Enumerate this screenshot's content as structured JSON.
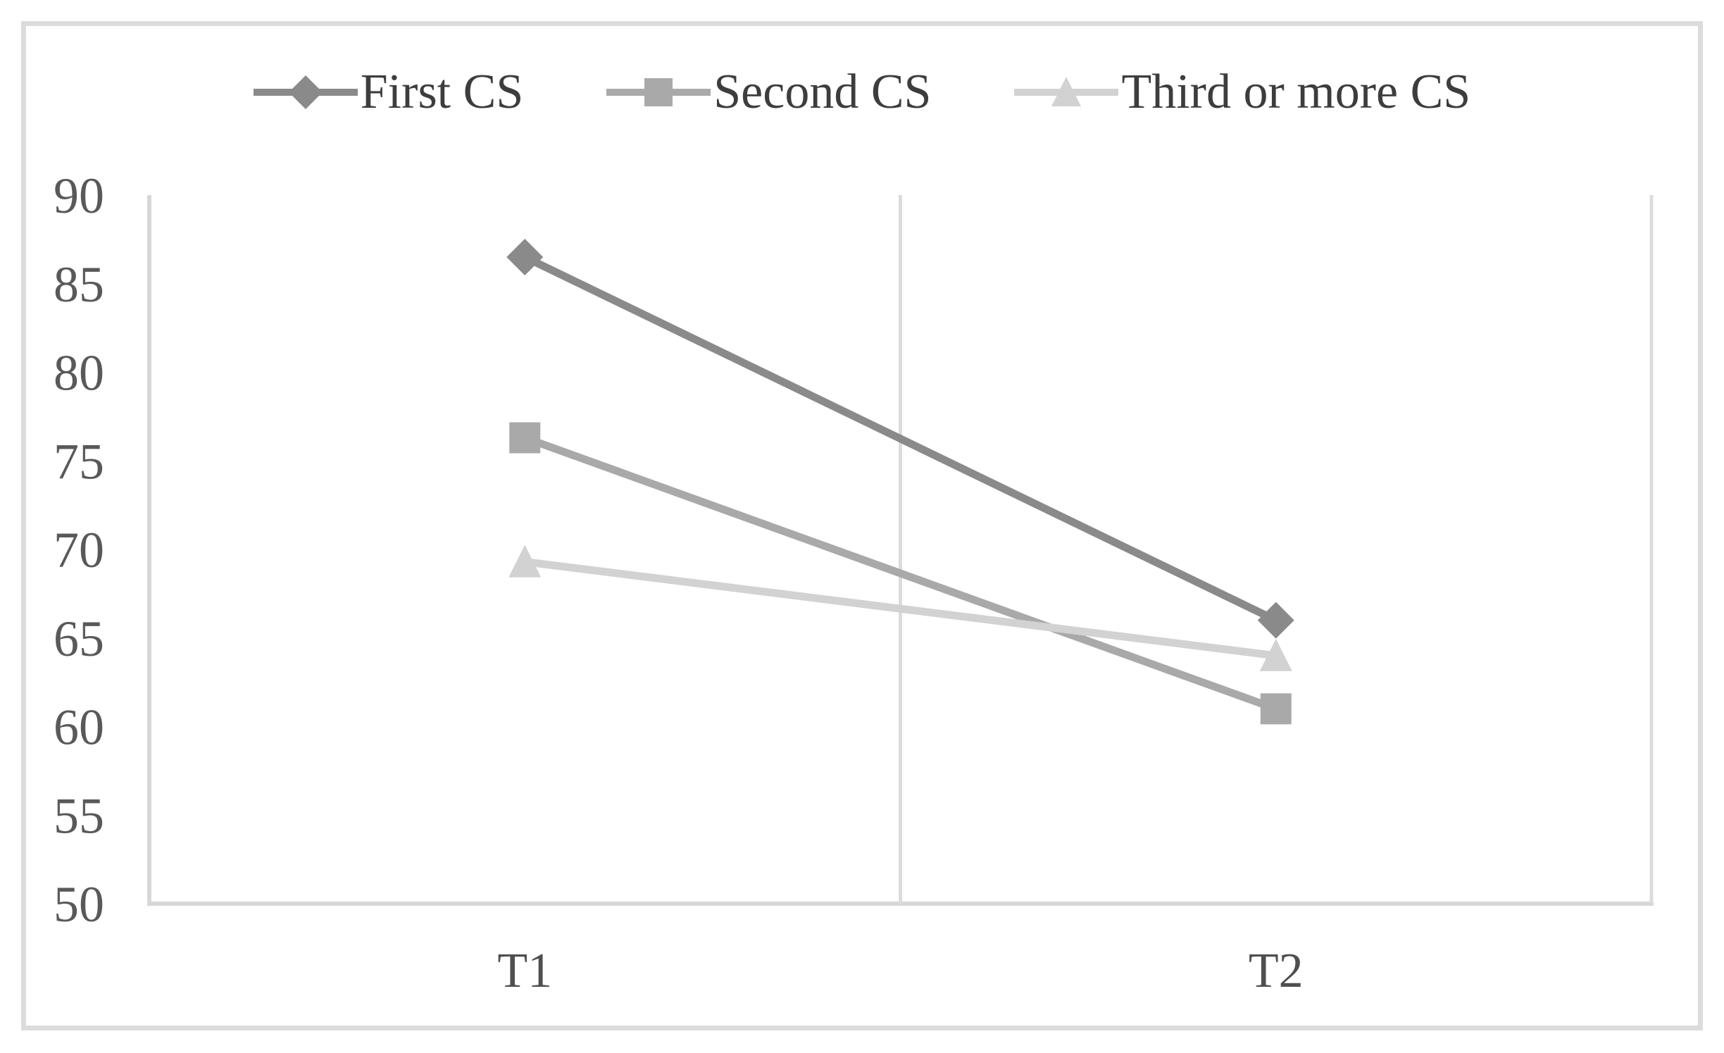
{
  "chart_data": {
    "type": "line",
    "title": "",
    "xlabel": "",
    "ylabel": "",
    "categories": [
      "T1",
      "T2"
    ],
    "series": [
      {
        "name": "First CS",
        "marker": "diamond",
        "color": "#8a8a8a",
        "values": [
          86.5,
          66.0
        ]
      },
      {
        "name": "Second CS",
        "marker": "square",
        "color": "#a9a9a9",
        "values": [
          76.3,
          61.0
        ]
      },
      {
        "name": "Third or more CS",
        "marker": "triangle",
        "color": "#d2d2d2",
        "values": [
          69.3,
          64.0
        ]
      }
    ],
    "yticks": [
      90,
      85,
      80,
      75,
      70,
      65,
      60,
      55,
      50
    ],
    "ylim": [
      50,
      90
    ],
    "legend_position": "top",
    "grid": "vertical line at category boundary, left/bottom/right plot edges"
  },
  "colors": {
    "axis_line": "#d7d7d7",
    "gridline": "#dcdcdc",
    "figure_border": "#dcdcdc",
    "tick_text": "#595959",
    "category_text": "#4f4f4f",
    "legend_text": "#3d3d3d",
    "background": "#ffffff"
  }
}
